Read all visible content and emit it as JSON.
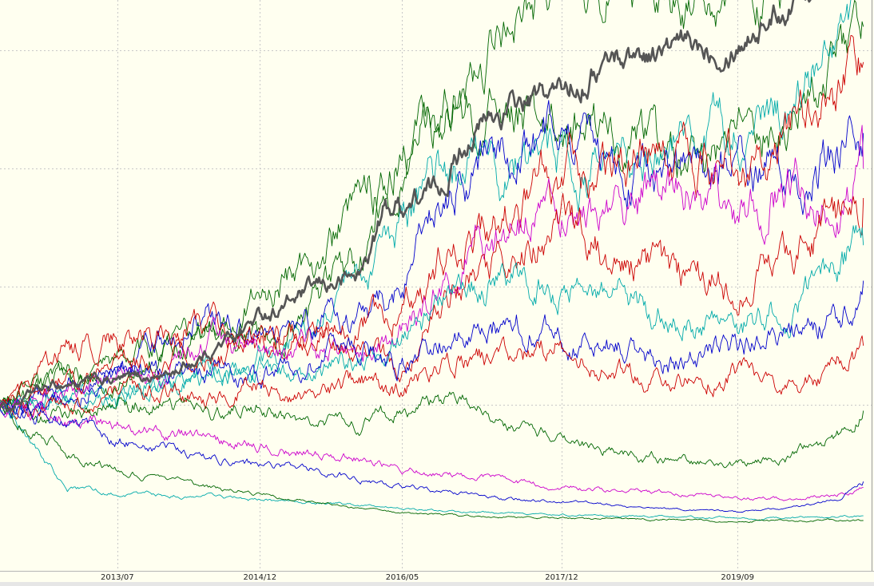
{
  "chart_data": {
    "type": "line",
    "title": "",
    "xlabel": "",
    "ylabel": "",
    "x_tick_labels": [
      "2013/07",
      "2014/12",
      "2016/05",
      "2017/12",
      "2019/09"
    ],
    "x_tick_dates": [
      "2013-07-01",
      "2014-12-01",
      "2016-05-01",
      "2017-12-01",
      "2019-09-01"
    ],
    "xlim": [
      "2012-05-01",
      "2020-12-31"
    ],
    "ylim": [
      0,
      6
    ],
    "ygrid_values": [
      1,
      2,
      3,
      4,
      5
    ],
    "xgrid": true,
    "ygrid": true,
    "legend": "none",
    "colors": {
      "background": "#fffff0",
      "grid": "#c8c8c8",
      "benchmark": "#555555",
      "series_palette": [
        "#cc0000",
        "#0000cc",
        "#cc00cc",
        "#00aaaa",
        "#006600"
      ]
    },
    "series": [
      {
        "color": "#555555",
        "bold": true,
        "points": [
          [
            "2012-05",
            1.0
          ],
          [
            "2012-06",
            0.97
          ],
          [
            "2012-09",
            1.1
          ],
          [
            "2013-01",
            1.18
          ],
          [
            "2013-07",
            1.2
          ],
          [
            "2014-01",
            1.25
          ],
          [
            "2014-06",
            1.45
          ],
          [
            "2014-12",
            1.75
          ],
          [
            "2015-06",
            1.95
          ],
          [
            "2015-12",
            2.1
          ],
          [
            "2016-03",
            2.65
          ],
          [
            "2016-09",
            2.8
          ],
          [
            "2017-01",
            3.3
          ],
          [
            "2017-06",
            3.5
          ],
          [
            "2017-12",
            3.65
          ],
          [
            "2018-06",
            3.95
          ],
          [
            "2019-01",
            4.0
          ],
          [
            "2019-09",
            4.1
          ],
          [
            "2020-03",
            4.4
          ],
          [
            "2020-09",
            4.85
          ],
          [
            "2020-12",
            5.2
          ]
        ]
      },
      {
        "color": "#006600",
        "points": [
          [
            "2012-05",
            1.0
          ],
          [
            "2013-01",
            1.2
          ],
          [
            "2013-07",
            1.35
          ],
          [
            "2014-06",
            1.6
          ],
          [
            "2014-12",
            1.9
          ],
          [
            "2015-06",
            2.2
          ],
          [
            "2015-12",
            2.6
          ],
          [
            "2016-05",
            3.2
          ],
          [
            "2016-12",
            3.55
          ],
          [
            "2017-06",
            4.3
          ],
          [
            "2017-12",
            4.45
          ],
          [
            "2018-06",
            4.6
          ],
          [
            "2019-01",
            4.45
          ],
          [
            "2019-09",
            4.35
          ],
          [
            "2020-03",
            4.55
          ],
          [
            "2020-09",
            4.9
          ],
          [
            "2020-12",
            5.05
          ]
        ]
      },
      {
        "color": "#006600",
        "points": [
          [
            "2012-05",
            1.0
          ],
          [
            "2013-01",
            1.25
          ],
          [
            "2013-07",
            1.15
          ],
          [
            "2014-06",
            1.7
          ],
          [
            "2014-12",
            1.55
          ],
          [
            "2015-06",
            1.8
          ],
          [
            "2015-12",
            2.3
          ],
          [
            "2016-05",
            3.05
          ],
          [
            "2016-12",
            3.6
          ],
          [
            "2017-06",
            3.45
          ],
          [
            "2017-12",
            3.35
          ],
          [
            "2018-06",
            3.25
          ],
          [
            "2019-01",
            3.05
          ],
          [
            "2019-09",
            3.15
          ],
          [
            "2020-03",
            3.5
          ],
          [
            "2020-09",
            3.9
          ],
          [
            "2020-12",
            4.2
          ]
        ]
      },
      {
        "color": "#00aaaa",
        "points": [
          [
            "2012-05",
            1.0
          ],
          [
            "2013-01",
            1.1
          ],
          [
            "2013-07",
            1.0
          ],
          [
            "2014-06",
            1.3
          ],
          [
            "2014-12",
            1.4
          ],
          [
            "2015-06",
            1.6
          ],
          [
            "2015-12",
            2.0
          ],
          [
            "2016-05",
            2.5
          ],
          [
            "2016-12",
            3.05
          ],
          [
            "2017-06",
            2.95
          ],
          [
            "2017-12",
            3.1
          ],
          [
            "2018-06",
            2.95
          ],
          [
            "2019-01",
            3.15
          ],
          [
            "2019-09",
            3.35
          ],
          [
            "2020-03",
            3.5
          ],
          [
            "2020-09",
            4.1
          ],
          [
            "2020-12",
            4.45
          ]
        ]
      },
      {
        "color": "#0000cc",
        "points": [
          [
            "2012-05",
            1.0
          ],
          [
            "2013-01",
            1.15
          ],
          [
            "2013-07",
            1.3
          ],
          [
            "2014-06",
            1.75
          ],
          [
            "2014-12",
            1.6
          ],
          [
            "2015-06",
            1.65
          ],
          [
            "2015-12",
            1.75
          ],
          [
            "2016-05",
            2.0
          ],
          [
            "2016-12",
            2.95
          ],
          [
            "2017-06",
            3.15
          ],
          [
            "2017-12",
            3.3
          ],
          [
            "2018-06",
            3.0
          ],
          [
            "2019-01",
            2.85
          ],
          [
            "2019-09",
            3.1
          ],
          [
            "2020-03",
            2.95
          ],
          [
            "2020-09",
            3.1
          ],
          [
            "2020-12",
            3.3
          ]
        ]
      },
      {
        "color": "#cc0000",
        "points": [
          [
            "2012-05",
            1.0
          ],
          [
            "2013-01",
            1.45
          ],
          [
            "2013-07",
            1.55
          ],
          [
            "2014-06",
            1.65
          ],
          [
            "2014-12",
            1.5
          ],
          [
            "2015-06",
            1.55
          ],
          [
            "2015-12",
            1.7
          ],
          [
            "2016-05",
            1.75
          ],
          [
            "2016-12",
            2.4
          ],
          [
            "2017-06",
            2.6
          ],
          [
            "2017-12",
            2.9
          ],
          [
            "2018-06",
            3.05
          ],
          [
            "2019-01",
            3.1
          ],
          [
            "2019-09",
            3.0
          ],
          [
            "2020-03",
            3.3
          ],
          [
            "2020-09",
            3.6
          ],
          [
            "2020-12",
            3.9
          ]
        ]
      },
      {
        "color": "#cc00cc",
        "points": [
          [
            "2012-05",
            1.0
          ],
          [
            "2013-01",
            1.1
          ],
          [
            "2013-07",
            1.2
          ],
          [
            "2014-06",
            1.5
          ],
          [
            "2014-12",
            1.45
          ],
          [
            "2015-06",
            1.5
          ],
          [
            "2015-12",
            1.4
          ],
          [
            "2016-05",
            1.6
          ],
          [
            "2016-12",
            2.3
          ],
          [
            "2017-06",
            2.55
          ],
          [
            "2017-12",
            2.6
          ],
          [
            "2018-06",
            2.5
          ],
          [
            "2019-01",
            2.85
          ],
          [
            "2019-09",
            2.7
          ],
          [
            "2020-03",
            2.9
          ],
          [
            "2020-09",
            2.75
          ],
          [
            "2020-12",
            3.0
          ]
        ]
      },
      {
        "color": "#cc0000",
        "points": [
          [
            "2012-05",
            1.0
          ],
          [
            "2013-01",
            1.2
          ],
          [
            "2013-07",
            1.35
          ],
          [
            "2014-06",
            1.4
          ],
          [
            "2014-12",
            1.55
          ],
          [
            "2015-06",
            1.6
          ],
          [
            "2015-12",
            1.45
          ],
          [
            "2016-05",
            1.3
          ],
          [
            "2016-12",
            2.0
          ],
          [
            "2017-06",
            2.25
          ],
          [
            "2017-12",
            2.5
          ],
          [
            "2018-06",
            2.25
          ],
          [
            "2019-01",
            2.1
          ],
          [
            "2019-09",
            2.0
          ],
          [
            "2020-03",
            2.35
          ],
          [
            "2020-09",
            2.55
          ],
          [
            "2020-12",
            2.75
          ]
        ]
      },
      {
        "color": "#00aaaa",
        "points": [
          [
            "2012-05",
            1.0
          ],
          [
            "2013-01",
            1.05
          ],
          [
            "2013-07",
            1.1
          ],
          [
            "2014-06",
            1.2
          ],
          [
            "2014-12",
            1.35
          ],
          [
            "2015-06",
            1.25
          ],
          [
            "2015-12",
            1.4
          ],
          [
            "2016-05",
            1.55
          ],
          [
            "2016-12",
            1.9
          ],
          [
            "2017-06",
            2.1
          ],
          [
            "2017-12",
            2.0
          ],
          [
            "2018-06",
            1.95
          ],
          [
            "2019-01",
            1.75
          ],
          [
            "2019-09",
            1.65
          ],
          [
            "2020-03",
            1.85
          ],
          [
            "2020-09",
            2.2
          ],
          [
            "2020-12",
            2.35
          ]
        ]
      },
      {
        "color": "#0000cc",
        "points": [
          [
            "2012-05",
            1.0
          ],
          [
            "2013-01",
            1.05
          ],
          [
            "2013-07",
            1.25
          ],
          [
            "2014-06",
            1.3
          ],
          [
            "2014-12",
            1.2
          ],
          [
            "2015-06",
            1.35
          ],
          [
            "2015-12",
            1.5
          ],
          [
            "2016-05",
            1.35
          ],
          [
            "2016-12",
            1.6
          ],
          [
            "2017-06",
            1.75
          ],
          [
            "2017-12",
            1.55
          ],
          [
            "2018-06",
            1.5
          ],
          [
            "2019-01",
            1.35
          ],
          [
            "2019-09",
            1.5
          ],
          [
            "2020-03",
            1.6
          ],
          [
            "2020-09",
            1.75
          ],
          [
            "2020-12",
            2.05
          ]
        ]
      },
      {
        "color": "#cc0000",
        "points": [
          [
            "2012-05",
            1.0
          ],
          [
            "2013-01",
            0.95
          ],
          [
            "2013-07",
            1.1
          ],
          [
            "2014-06",
            1.05
          ],
          [
            "2014-12",
            1.15
          ],
          [
            "2015-06",
            1.0
          ],
          [
            "2015-12",
            1.25
          ],
          [
            "2016-05",
            1.1
          ],
          [
            "2016-12",
            1.45
          ],
          [
            "2017-06",
            1.35
          ],
          [
            "2017-12",
            1.55
          ],
          [
            "2018-06",
            1.3
          ],
          [
            "2019-01",
            1.15
          ],
          [
            "2019-09",
            1.3
          ],
          [
            "2020-03",
            1.1
          ],
          [
            "2020-09",
            1.35
          ],
          [
            "2020-12",
            1.5
          ]
        ]
      },
      {
        "color": "#006600",
        "points": [
          [
            "2012-05",
            1.0
          ],
          [
            "2013-01",
            0.9
          ],
          [
            "2013-07",
            1.05
          ],
          [
            "2014-06",
            0.95
          ],
          [
            "2014-12",
            1.0
          ],
          [
            "2015-06",
            0.9
          ],
          [
            "2015-12",
            0.85
          ],
          [
            "2016-05",
            0.95
          ],
          [
            "2016-12",
            1.05
          ],
          [
            "2017-06",
            0.85
          ],
          [
            "2017-12",
            0.7
          ],
          [
            "2018-06",
            0.6
          ],
          [
            "2019-01",
            0.55
          ],
          [
            "2019-09",
            0.5
          ],
          [
            "2020-03",
            0.55
          ],
          [
            "2020-09",
            0.75
          ],
          [
            "2020-12",
            0.95
          ]
        ]
      },
      {
        "color": "#cc00cc",
        "points": [
          [
            "2012-05",
            1.0
          ],
          [
            "2013-01",
            0.88
          ],
          [
            "2013-07",
            0.8
          ],
          [
            "2014-06",
            0.72
          ],
          [
            "2014-12",
            0.65
          ],
          [
            "2015-06",
            0.6
          ],
          [
            "2015-12",
            0.55
          ],
          [
            "2016-05",
            0.45
          ],
          [
            "2016-12",
            0.4
          ],
          [
            "2017-06",
            0.35
          ],
          [
            "2017-12",
            0.3
          ],
          [
            "2018-06",
            0.28
          ],
          [
            "2019-01",
            0.25
          ],
          [
            "2019-09",
            0.22
          ],
          [
            "2020-03",
            0.2
          ],
          [
            "2020-09",
            0.25
          ],
          [
            "2020-12",
            0.3
          ]
        ]
      },
      {
        "color": "#0000cc",
        "points": [
          [
            "2012-05",
            1.0
          ],
          [
            "2013-01",
            0.85
          ],
          [
            "2013-07",
            0.7
          ],
          [
            "2014-06",
            0.55
          ],
          [
            "2014-12",
            0.5
          ],
          [
            "2015-06",
            0.45
          ],
          [
            "2015-12",
            0.38
          ],
          [
            "2016-05",
            0.3
          ],
          [
            "2016-12",
            0.25
          ],
          [
            "2017-06",
            0.2
          ],
          [
            "2017-12",
            0.18
          ],
          [
            "2018-06",
            0.15
          ],
          [
            "2019-01",
            0.12
          ],
          [
            "2019-09",
            0.1
          ],
          [
            "2020-03",
            0.12
          ],
          [
            "2020-09",
            0.2
          ],
          [
            "2020-12",
            0.35
          ]
        ]
      },
      {
        "color": "#00aaaa",
        "points": [
          [
            "2012-05",
            1.0
          ],
          [
            "2013-01",
            0.3
          ],
          [
            "2013-07",
            0.25
          ],
          [
            "2014-06",
            0.22
          ],
          [
            "2014-12",
            0.2
          ],
          [
            "2015-06",
            0.17
          ],
          [
            "2015-12",
            0.15
          ],
          [
            "2016-05",
            0.12
          ],
          [
            "2016-12",
            0.1
          ],
          [
            "2017-06",
            0.08
          ],
          [
            "2017-12",
            0.07
          ],
          [
            "2018-06",
            0.06
          ],
          [
            "2019-01",
            0.05
          ],
          [
            "2019-09",
            0.04
          ],
          [
            "2020-03",
            0.04
          ],
          [
            "2020-09",
            0.05
          ],
          [
            "2020-12",
            0.06
          ]
        ]
      },
      {
        "color": "#006600",
        "points": [
          [
            "2012-05",
            1.0
          ],
          [
            "2013-01",
            0.6
          ],
          [
            "2013-07",
            0.45
          ],
          [
            "2014-06",
            0.3
          ],
          [
            "2014-12",
            0.25
          ],
          [
            "2015-06",
            0.18
          ],
          [
            "2015-12",
            0.12
          ],
          [
            "2016-05",
            0.09
          ],
          [
            "2016-12",
            0.06
          ],
          [
            "2017-06",
            0.05
          ],
          [
            "2017-12",
            0.04
          ],
          [
            "2018-06",
            0.03
          ],
          [
            "2019-01",
            0.03
          ],
          [
            "2019-09",
            0.02
          ],
          [
            "2020-03",
            0.02
          ],
          [
            "2020-09",
            0.02
          ],
          [
            "2020-12",
            0.02
          ]
        ]
      }
    ]
  }
}
